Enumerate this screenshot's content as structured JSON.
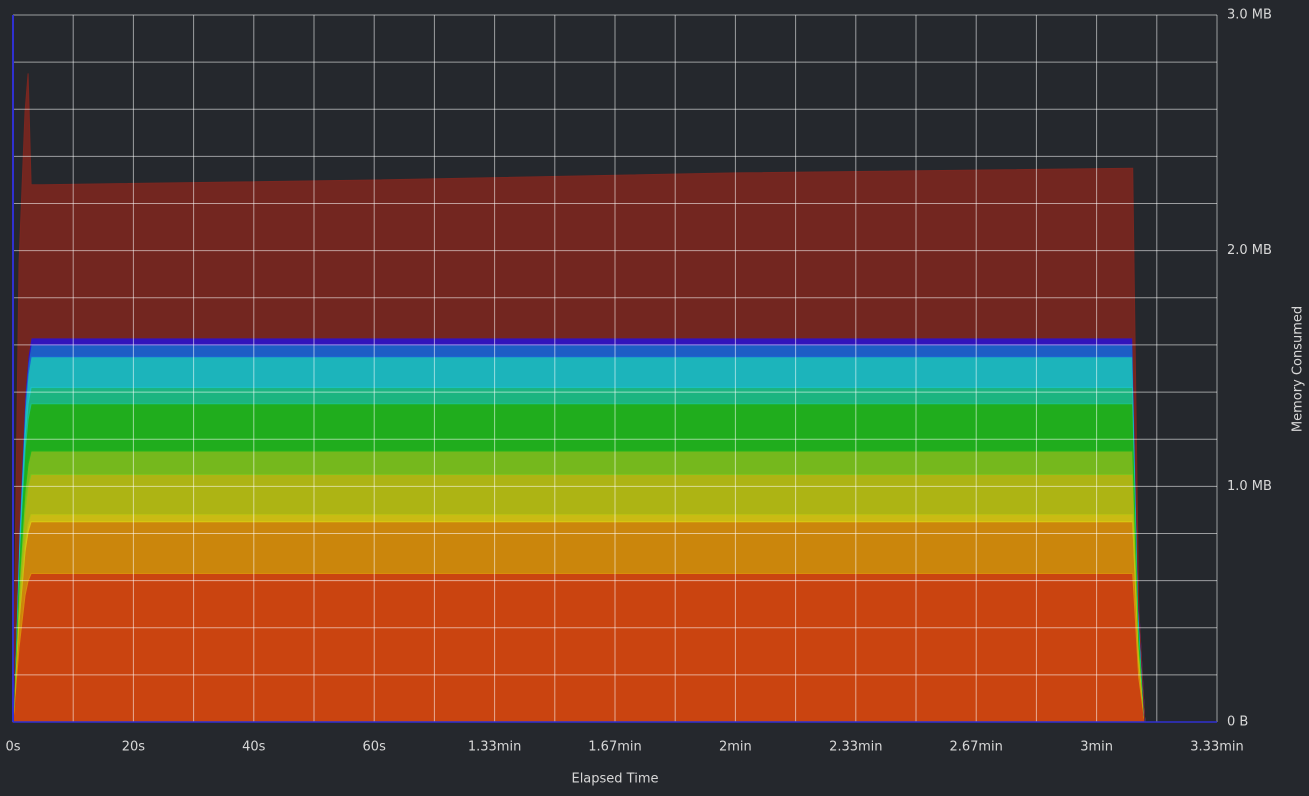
{
  "chart_data": {
    "type": "stacked_area",
    "x_label": "Elapsed Time",
    "y_label": "Memory Consumed",
    "x": [
      0,
      1,
      2,
      2.5,
      3,
      5,
      60,
      120,
      186,
      187,
      188,
      200
    ],
    "series": [
      {
        "color": "#d8460e",
        "values": [
          0,
          0.315,
          0.536,
          0.599,
          0.63,
          0.63,
          0.63,
          0.63,
          0.63,
          0.189,
          0,
          0
        ]
      },
      {
        "color": "#d98e0a",
        "values": [
          0,
          0.11,
          0.187,
          0.209,
          0.22,
          0.22,
          0.22,
          0.22,
          0.22,
          0.066,
          0,
          0
        ]
      },
      {
        "color": "#d8c812",
        "values": [
          0,
          0.015,
          0.026,
          0.029,
          0.03,
          0.03,
          0.03,
          0.03,
          0.03,
          0.009,
          0,
          0
        ]
      },
      {
        "color": "#b9c012",
        "values": [
          0,
          0.085,
          0.145,
          0.162,
          0.17,
          0.17,
          0.17,
          0.17,
          0.17,
          0.051,
          0,
          0
        ]
      },
      {
        "color": "#7cc41c",
        "values": [
          0,
          0.05,
          0.085,
          0.095,
          0.1,
          0.1,
          0.1,
          0.1,
          0.1,
          0.03,
          0,
          0
        ]
      },
      {
        "color": "#1fb81c",
        "values": [
          0,
          0.1,
          0.17,
          0.19,
          0.2,
          0.2,
          0.2,
          0.2,
          0.2,
          0.06,
          0,
          0
        ]
      },
      {
        "color": "#1bc088",
        "values": [
          0,
          0.035,
          0.06,
          0.067,
          0.07,
          0.07,
          0.07,
          0.07,
          0.07,
          0.021,
          0,
          0
        ]
      },
      {
        "color": "#1bc0c8",
        "values": [
          0,
          0.065,
          0.111,
          0.124,
          0.13,
          0.13,
          0.13,
          0.13,
          0.13,
          0.039,
          0,
          0
        ]
      },
      {
        "color": "#1c62d2",
        "values": [
          0,
          0.025,
          0.043,
          0.048,
          0.05,
          0.05,
          0.05,
          0.05,
          0.05,
          0.015,
          0,
          0
        ]
      },
      {
        "color": "#3212c8",
        "values": [
          0,
          0.015,
          0.026,
          0.029,
          0.03,
          0.03,
          0.03,
          0.03,
          0.03,
          0.009,
          0,
          0
        ]
      },
      {
        "color": "#7a2620",
        "values": [
          0,
          1.13,
          1.2,
          1.2,
          0.65,
          0.65,
          0.67,
          0.7,
          0.72,
          0,
          0,
          0
        ]
      }
    ],
    "xlim": [
      0,
      200
    ],
    "ylim": [
      0,
      3
    ],
    "xticks": [
      {
        "value": 0,
        "label": "0s"
      },
      {
        "value": 20,
        "label": "20s"
      },
      {
        "value": 40,
        "label": "40s"
      },
      {
        "value": 60,
        "label": "60s"
      },
      {
        "value": 80,
        "label": "1.33min"
      },
      {
        "value": 100,
        "label": "1.67min"
      },
      {
        "value": 120,
        "label": "2min"
      },
      {
        "value": 140,
        "label": "2.33min"
      },
      {
        "value": 160,
        "label": "2.67min"
      },
      {
        "value": 180,
        "label": "3min"
      },
      {
        "value": 200,
        "label": "3.33min"
      }
    ],
    "xminorticks": [
      10,
      30,
      50,
      70,
      90,
      110,
      130,
      150,
      170,
      190
    ],
    "yticks": [
      {
        "value": 0,
        "label": "0 B"
      },
      {
        "value": 1,
        "label": "1.0 MB"
      },
      {
        "value": 2,
        "label": "2.0 MB"
      },
      {
        "value": 3,
        "label": "3.0 MB"
      }
    ],
    "yminorticks": [
      0.2,
      0.4,
      0.6,
      0.8,
      1.2,
      1.4,
      1.6,
      1.8,
      2.2,
      2.4,
      2.6,
      2.8
    ],
    "grid": true
  }
}
